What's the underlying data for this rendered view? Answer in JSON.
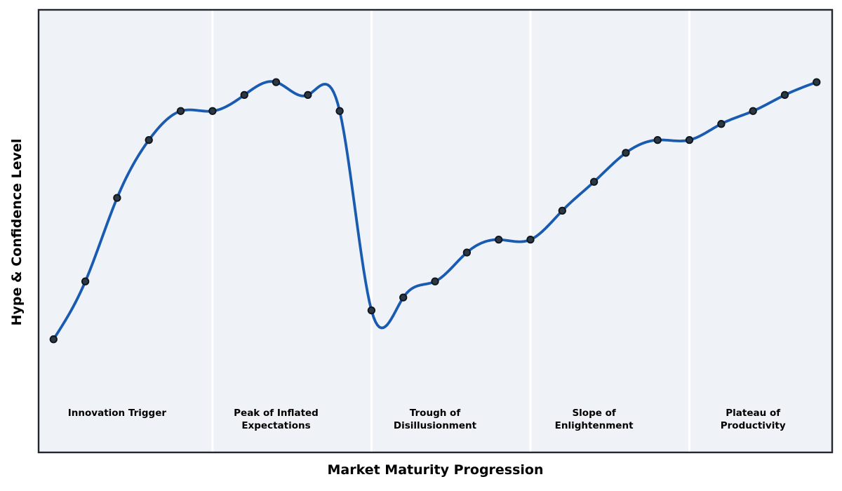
{
  "chart_data": {
    "type": "line",
    "xlabel": "Market Maturity Progression",
    "ylabel": "Hype & Confidence Level",
    "x": [
      0,
      1,
      2,
      3,
      4,
      5,
      6,
      7,
      8,
      9,
      10,
      11,
      12,
      13,
      14,
      15,
      16,
      17,
      18,
      19,
      20,
      21,
      22,
      23,
      24
    ],
    "series": [
      {
        "name": "Hype & Confidence Level",
        "values": [
          20,
          38,
          64,
          82,
          91,
          91,
          96,
          100,
          96,
          91,
          29,
          33,
          38,
          47,
          51,
          51,
          60,
          69,
          78,
          82,
          82,
          87,
          91,
          96,
          100
        ]
      }
    ],
    "xlim": [
      -0.47,
      24.49
    ],
    "ylim": [
      -15.2,
      122.5
    ],
    "grid": false,
    "legend_position": "none",
    "smoothing": "natural-cubic-spline",
    "marker": "circle",
    "phase_boundaries_x": [
      5,
      10,
      15,
      20
    ],
    "phases": [
      {
        "label": "Innovation Trigger",
        "lines": [
          "Innovation Trigger"
        ],
        "center_x": 2
      },
      {
        "label": "Peak of Inflated Expectations",
        "lines": [
          "Peak of Inflated",
          "Expectations"
        ],
        "center_x": 7
      },
      {
        "label": "Trough of Disillusionment",
        "lines": [
          "Trough of",
          "Disillusionment"
        ],
        "center_x": 12
      },
      {
        "label": "Slope of Enlightenment",
        "lines": [
          "Slope of",
          "Enlightenment"
        ],
        "center_x": 17
      },
      {
        "label": "Plateau of Productivity",
        "lines": [
          "Plateau of",
          "Productivity"
        ],
        "center_x": 22
      }
    ]
  },
  "colors": {
    "line": "#1a5bb2",
    "marker_fill": "#2b3845",
    "marker_edge": "#10151b",
    "plot_background": "#eff3f8",
    "phase_separator": "#ffffff",
    "plot_border": "#24272d",
    "text": "#000000",
    "figure_background": "#ffffff"
  }
}
